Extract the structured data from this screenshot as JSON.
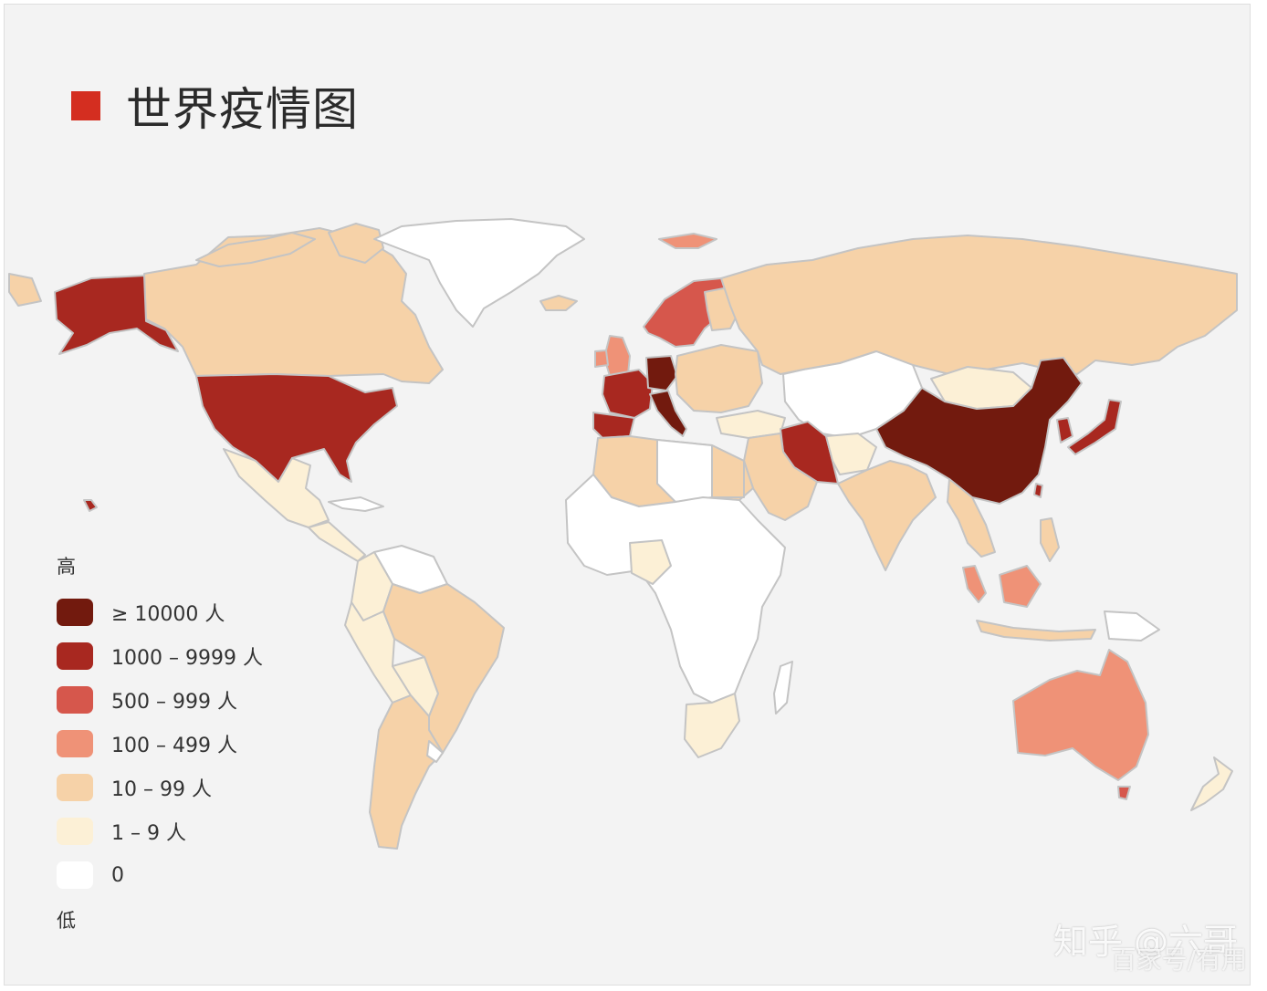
{
  "title": "世界疫情图",
  "legend": {
    "high_label": "高",
    "low_label": "低",
    "items": [
      {
        "label": "≥ 10000 人",
        "color": "#721a0e"
      },
      {
        "label": "1000 – 9999 人",
        "color": "#a82820"
      },
      {
        "label": "500 – 999 人",
        "color": "#d6574c"
      },
      {
        "label": "100 – 499 人",
        "color": "#ef9277"
      },
      {
        "label": "10 – 99 人",
        "color": "#f6d2a8"
      },
      {
        "label": "1 – 9 人",
        "color": "#fcf0d6"
      },
      {
        "label": "0",
        "color": "#ffffff"
      }
    ]
  },
  "watermark": {
    "line1": "知乎 @六哥",
    "line2": "百家号/有用"
  },
  "colors": {
    "accent": "#d42e20",
    "background": "#f3f3f3",
    "border": "#c4c4c4"
  }
}
